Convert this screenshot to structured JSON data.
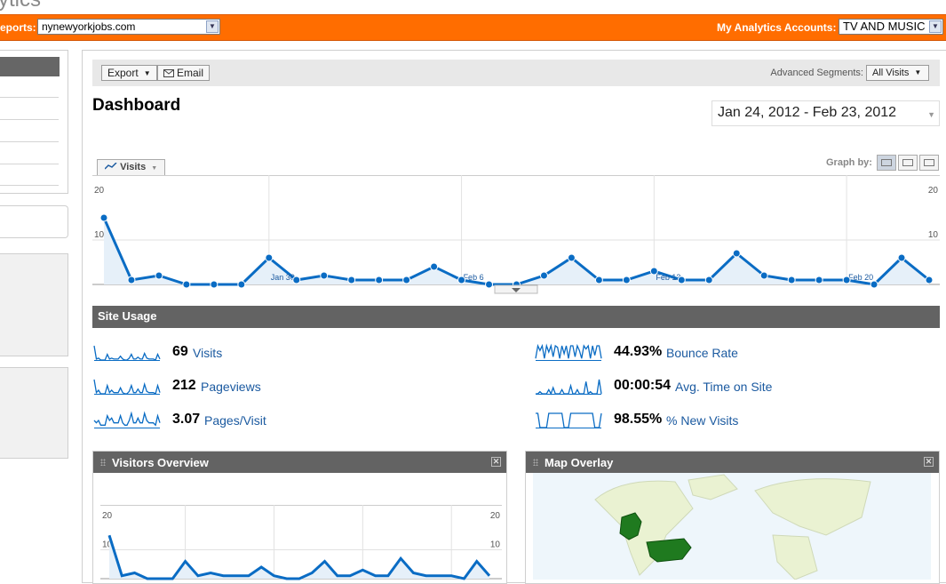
{
  "brand_fragment": "ytics",
  "header": {
    "reports_label": "eports:",
    "site_select": "nynewyorkjobs.com",
    "accounts_label": "My Analytics Accounts:",
    "account_select": "TV AND MUSIC"
  },
  "toolbar": {
    "export_label": "Export",
    "email_label": "Email",
    "advanced_segments_label": "Advanced Segments:",
    "segment_value": "All Visits"
  },
  "page_title": "Dashboard",
  "date_range": "Jan 24, 2012 - Feb 23, 2012",
  "graph": {
    "metric_tab": "Visits",
    "graph_by_label": "Graph by:"
  },
  "chart_data": [
    {
      "type": "line",
      "series": [
        {
          "name": "Visits",
          "values": [
            15,
            1,
            2,
            0,
            0,
            0,
            6,
            1,
            2,
            1,
            1,
            1,
            4,
            1,
            0,
            0,
            2,
            6,
            1,
            1,
            3,
            1,
            1,
            7,
            2,
            1,
            1,
            1,
            0,
            6,
            1
          ]
        }
      ],
      "ylim": [
        0,
        20
      ],
      "yticks": [
        "20",
        "10"
      ],
      "date_labels": [
        {
          "label": "Jan 30",
          "index": 6
        },
        {
          "label": "Feb 6",
          "index": 13
        },
        {
          "label": "Feb 13",
          "index": 20
        },
        {
          "label": "Feb 20",
          "index": 27
        }
      ]
    },
    {
      "type": "line",
      "series": [
        {
          "name": "Visits",
          "values": [
            15,
            1,
            2,
            0,
            0,
            0,
            6,
            1,
            2,
            1,
            1,
            1,
            4,
            1,
            0,
            0,
            2,
            6,
            1,
            1,
            3,
            1,
            1,
            7,
            2,
            1,
            1,
            1,
            0,
            6,
            1
          ]
        }
      ],
      "ylim": [
        0,
        20
      ],
      "yticks": [
        "20",
        "10"
      ]
    }
  ],
  "site_usage": {
    "title": "Site Usage",
    "metrics": [
      {
        "value": "69",
        "name": "Visits",
        "spark": [
          15,
          1,
          2,
          0,
          0,
          0,
          6,
          1,
          2,
          1,
          1,
          1,
          4,
          1,
          0,
          0,
          2,
          6,
          1,
          1,
          3,
          1,
          1,
          7,
          2,
          1,
          1,
          1,
          0,
          6,
          1
        ]
      },
      {
        "value": "212",
        "name": "Pageviews",
        "spark": [
          12,
          1,
          3,
          0,
          0,
          0,
          7,
          1,
          3,
          1,
          1,
          1,
          5,
          1,
          0,
          0,
          2,
          7,
          1,
          1,
          4,
          1,
          1,
          8,
          2,
          1,
          1,
          1,
          0,
          7,
          1
        ]
      },
      {
        "value": "3.07",
        "name": "Pages/Visit",
        "spark": [
          3,
          2,
          3,
          1,
          1,
          1,
          5,
          3,
          4,
          2,
          2,
          2,
          5,
          2,
          1,
          1,
          3,
          6,
          2,
          2,
          4,
          2,
          2,
          6,
          3,
          2,
          2,
          2,
          1,
          5,
          2
        ]
      },
      {
        "value": "44.93%",
        "name": "Bounce Rate",
        "spark": [
          1,
          9,
          6,
          9,
          1,
          9,
          5,
          9,
          2,
          9,
          8,
          1,
          9,
          4,
          9,
          1,
          9,
          9,
          2,
          9,
          6,
          1,
          9,
          7,
          9,
          1,
          9,
          3,
          9,
          9,
          1
        ]
      },
      {
        "value": "00:00:54",
        "name": "Avg. Time on Site",
        "spark": [
          0,
          0,
          1,
          0,
          0,
          0,
          2,
          0,
          3,
          0,
          0,
          0,
          2,
          0,
          0,
          0,
          4,
          0,
          0,
          2,
          0,
          0,
          0,
          6,
          0,
          1,
          0,
          0,
          0,
          7,
          0
        ]
      },
      {
        "value": "98.55%",
        "name": "% New Visits",
        "spark": [
          9,
          9,
          0,
          0,
          0,
          0,
          9,
          9,
          9,
          9,
          9,
          9,
          9,
          0,
          0,
          0,
          9,
          9,
          9,
          9,
          9,
          9,
          9,
          9,
          9,
          9,
          9,
          0,
          0,
          0,
          9
        ]
      }
    ]
  },
  "panels": {
    "visitors_overview": "Visitors Overview",
    "map_overlay": "Map Overlay"
  },
  "colors": {
    "accent_orange": "#ff6d00",
    "line_blue": "#0a6cc4",
    "fill_blue": "#e6f0f9",
    "header_gray": "#636363",
    "map_highlight": "#1f7a1f"
  }
}
